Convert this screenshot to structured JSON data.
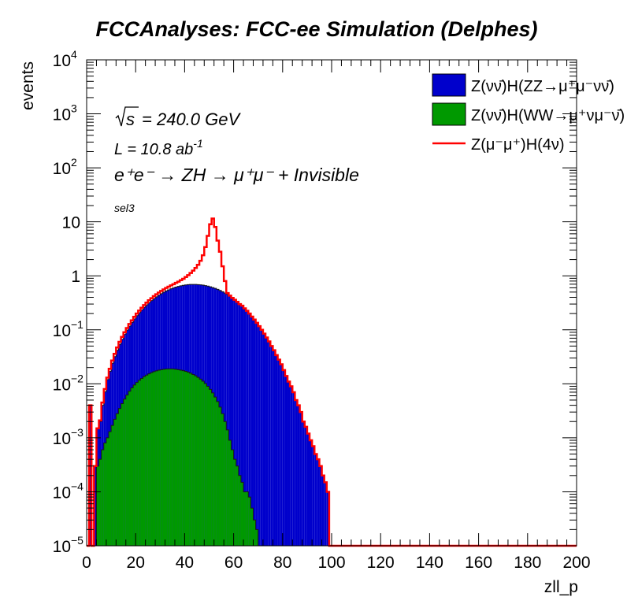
{
  "title": "FCCAnalyses: FCC-ee Simulation (Delphes)",
  "annotations": {
    "sqrt_s": "240.0 GeV",
    "lumi_prefix": "L = 10.8 ab",
    "lumi_exp": "-1",
    "process": "e⁺e⁻ → ZH → μ⁺μ⁻ + Invisible",
    "selection": "sel3"
  },
  "chart_data": {
    "type": "histogram",
    "xlabel": "zll_p",
    "ylabel": "events",
    "xlim": [
      0,
      200
    ],
    "ylim": [
      1e-05,
      10000
    ],
    "yscale": "log",
    "bin_width": 1,
    "x_ticks": [
      0,
      20,
      40,
      60,
      80,
      100,
      120,
      140,
      160,
      180,
      200
    ],
    "y_ticks": [
      {
        "value": 1e-05,
        "base": "10",
        "exp": "−5"
      },
      {
        "value": 0.0001,
        "base": "10",
        "exp": "−4"
      },
      {
        "value": 0.001,
        "base": "10",
        "exp": "−3"
      },
      {
        "value": 0.01,
        "base": "10",
        "exp": "−2"
      },
      {
        "value": 0.1,
        "base": "10",
        "exp": "−1"
      },
      {
        "value": 1,
        "base": "1",
        "exp": ""
      },
      {
        "value": 10,
        "base": "10",
        "exp": ""
      },
      {
        "value": 100,
        "base": "10",
        "exp": "2"
      },
      {
        "value": 1000,
        "base": "10",
        "exp": "3"
      },
      {
        "value": 10000,
        "base": "10",
        "exp": "4"
      }
    ],
    "legend_position": "top-right",
    "series": [
      {
        "name": "Z(νν̄)H(ZZ→μ⁺μ⁻νν̄)",
        "style": "filled",
        "color": "#0000cc",
        "x_start": 0,
        "values": [
          1e-05,
          0.004,
          1e-05,
          0.0003,
          0.0015,
          0.002,
          0.004,
          0.0071,
          0.012,
          0.017,
          0.024,
          0.032,
          0.042,
          0.054,
          0.067,
          0.082,
          0.099,
          0.117,
          0.137,
          0.159,
          0.183,
          0.208,
          0.234,
          0.262,
          0.29,
          0.319,
          0.349,
          0.379,
          0.409,
          0.439,
          0.468,
          0.497,
          0.525,
          0.551,
          0.576,
          0.599,
          0.62,
          0.638,
          0.655,
          0.668,
          0.679,
          0.687,
          0.692,
          0.694,
          0.693,
          0.689,
          0.682,
          0.672,
          0.66,
          0.645,
          0.627,
          0.607,
          0.585,
          0.561,
          0.536,
          0.509,
          0.481,
          0.453,
          0.423,
          0.393,
          0.364,
          0.335,
          0.305,
          0.277,
          0.25,
          0.224,
          0.199,
          0.176,
          0.155,
          0.135,
          0.117,
          0.1,
          0.085,
          0.072,
          0.061,
          0.05,
          0.042,
          0.034,
          0.028,
          0.023,
          0.018,
          0.014,
          0.011,
          0.009,
          0.007,
          0.005,
          0.004,
          0.003,
          0.002,
          0.0016,
          0.0012,
          0.0009,
          0.0007,
          0.0005,
          0.0004,
          0.0003,
          0.0002,
          0.00015,
          0.0001,
          1e-05
        ]
      },
      {
        "name": "Z(νν̄)H(WW→μ⁺νμ⁻ν̄)",
        "style": "filled",
        "color": "#009900",
        "x_start": 4,
        "values": [
          0.0003,
          0.0004,
          0.0006,
          0.0008,
          0.001,
          0.0013,
          0.0017,
          0.0022,
          0.0028,
          0.0035,
          0.0043,
          0.0052,
          0.0062,
          0.0073,
          0.0084,
          0.0095,
          0.0106,
          0.0116,
          0.0126,
          0.0136,
          0.0145,
          0.0153,
          0.0161,
          0.0168,
          0.0174,
          0.0179,
          0.0183,
          0.0186,
          0.0188,
          0.0189,
          0.0189,
          0.0188,
          0.0186,
          0.0183,
          0.0179,
          0.0175,
          0.017,
          0.0164,
          0.0157,
          0.0149,
          0.0141,
          0.0132,
          0.0122,
          0.0112,
          0.0101,
          0.009,
          0.0079,
          0.0068,
          0.0057,
          0.0047,
          0.0037,
          0.0028,
          0.002,
          0.0014,
          0.0009,
          0.0006,
          0.0004,
          0.0003,
          0.0002,
          0.00015,
          0.0001,
          0.0001,
          8e-05,
          5e-05,
          3e-05,
          2e-05
        ]
      },
      {
        "name": "Z(μ⁻μ⁺)H(4ν)",
        "style": "line",
        "color": "#ff0000",
        "x_start": 0,
        "values": [
          1e-05,
          0.004,
          1e-05,
          0.0003,
          0.0015,
          0.0021,
          0.0045,
          0.008,
          0.013,
          0.019,
          0.027,
          0.036,
          0.047,
          0.06,
          0.074,
          0.09,
          0.108,
          0.128,
          0.15,
          0.174,
          0.2,
          0.227,
          0.256,
          0.287,
          0.319,
          0.352,
          0.386,
          0.42,
          0.455,
          0.49,
          0.525,
          0.56,
          0.595,
          0.63,
          0.665,
          0.7,
          0.74,
          0.78,
          0.83,
          0.88,
          0.95,
          1.03,
          1.13,
          1.25,
          1.4,
          1.6,
          1.9,
          2.4,
          3.4,
          5.5,
          9.0,
          11.5,
          8.0,
          4.5,
          2.8,
          1.5,
          0.8,
          0.48,
          0.43,
          0.39,
          0.36,
          0.33,
          0.3,
          0.28,
          0.25,
          0.225,
          0.2,
          0.176,
          0.155,
          0.135,
          0.117,
          0.1,
          0.085,
          0.072,
          0.061,
          0.05,
          0.042,
          0.034,
          0.028,
          0.023,
          0.018,
          0.014,
          0.011,
          0.009,
          0.007,
          0.005,
          0.004,
          0.003,
          0.002,
          0.0016,
          0.0012,
          0.0009,
          0.0007,
          0.0005,
          0.0004,
          0.0003,
          0.0002,
          0.00015,
          0.0001,
          1e-05
        ]
      }
    ]
  }
}
